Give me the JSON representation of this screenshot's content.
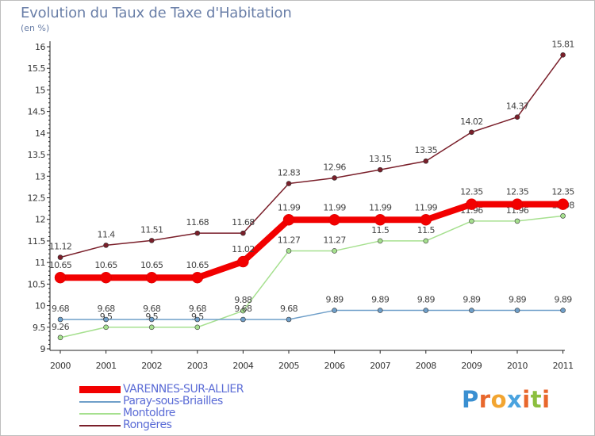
{
  "title": "Evolution du Taux de Taxe d'Habitation",
  "subtitle": "(en %)",
  "logo": {
    "text": "Proxiti",
    "letter_colors": [
      "#3a8fd1",
      "#e8672c",
      "#f2a531",
      "#4aa3df",
      "#e8672c",
      "#8cbf3f",
      "#e8672c"
    ]
  },
  "chart_data": {
    "type": "line",
    "x": [
      "2000",
      "2001",
      "2002",
      "2003",
      "2004",
      "2005",
      "2006",
      "2007",
      "2008",
      "2009",
      "2010",
      "2011"
    ],
    "ylim": [
      9,
      16
    ],
    "yticks": [
      "9",
      "9.5",
      "10",
      "10.5",
      "11",
      "11.5",
      "12",
      "12.5",
      "13",
      "13.5",
      "14",
      "14.5",
      "15",
      "15.5",
      "16"
    ],
    "series": [
      {
        "name": "Rongères",
        "color": "#7a1f2a",
        "values": [
          11.12,
          11.4,
          11.51,
          11.68,
          11.68,
          12.83,
          12.96,
          13.15,
          13.35,
          14.02,
          14.37,
          15.81
        ],
        "labels": [
          "11.12",
          "11.4",
          "11.51",
          "11.68",
          "11.68",
          "12.83",
          "12.96",
          "13.15",
          "13.35",
          "14.02",
          "14.37",
          "15.81"
        ]
      },
      {
        "name": "Montoldre",
        "color": "#a6e08f",
        "values": [
          9.26,
          9.5,
          9.5,
          9.5,
          9.88,
          11.27,
          11.27,
          11.5,
          11.5,
          11.96,
          11.96,
          12.08
        ],
        "labels": [
          "9.26",
          "9.5",
          "9.5",
          "9.5",
          "9.88",
          "11.27",
          "11.27",
          "11.5",
          "11.5",
          "11.96",
          "11.96",
          "12.08"
        ]
      },
      {
        "name": "Paray-sous-Briailles",
        "color": "#6f9fc9",
        "values": [
          9.68,
          9.68,
          9.68,
          9.68,
          9.68,
          9.68,
          9.89,
          9.89,
          9.89,
          9.89,
          9.89,
          9.89
        ],
        "labels": [
          "9.68",
          "9.68",
          "9.68",
          "9.68",
          "9.68",
          "9.68",
          "9.89",
          "9.89",
          "9.89",
          "9.89",
          "9.89",
          "9.89"
        ]
      },
      {
        "name": "VARENNES-SUR-ALLIER",
        "color": "#f20000",
        "values": [
          10.65,
          10.65,
          10.65,
          10.65,
          11.02,
          11.99,
          11.99,
          11.99,
          11.99,
          12.35,
          12.35,
          12.35
        ],
        "labels": [
          "10.65",
          "10.65",
          "10.65",
          "10.65",
          "11.02",
          "11.99",
          "11.99",
          "11.99",
          "11.99",
          "12.35",
          "12.35",
          "12.35"
        ]
      }
    ],
    "legend": [
      {
        "name": "VARENNES-SUR-ALLIER",
        "color": "#f20000"
      },
      {
        "name": "Paray-sous-Briailles",
        "color": "#6f9fc9"
      },
      {
        "name": "Montoldre",
        "color": "#a6e08f"
      },
      {
        "name": "Rongères",
        "color": "#7a1f2a"
      }
    ],
    "legend_placement": "bottom-left",
    "grid": false
  }
}
